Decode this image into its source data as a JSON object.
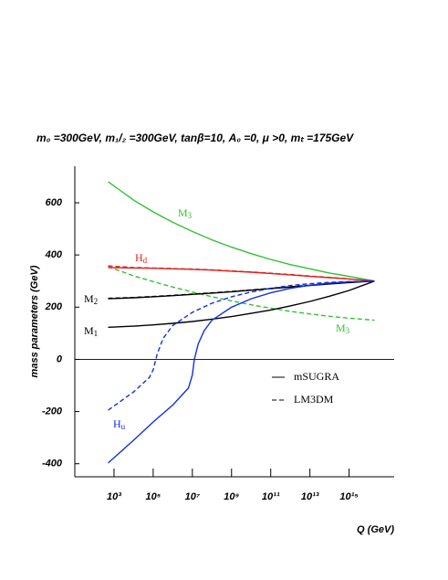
{
  "chart_data": {
    "type": "line",
    "title": "m₀ =300GeV, m₁/₂ =300GeV, tanβ=10, A₀ =0, μ >0, mₜ =175GeV",
    "x_label": "Q (GeV)",
    "y_label": "mass parameters (GeV)",
    "log_x": true,
    "xlim": [
      10,
      2e+17
    ],
    "ylim": [
      -450,
      740
    ],
    "xticks": [
      {
        "value": 1000,
        "label": "10³"
      },
      {
        "value": 100000,
        "label": "10⁵"
      },
      {
        "value": 10000000,
        "label": "10⁷"
      },
      {
        "value": 1000000000,
        "label": "10⁹"
      },
      {
        "value": 100000000000,
        "label": "10¹¹"
      },
      {
        "value": 10000000000000,
        "label": "10¹³"
      },
      {
        "value": 1000000000000000,
        "label": "10¹⁵"
      }
    ],
    "yticks": [
      -400,
      -200,
      0,
      200,
      400,
      600
    ],
    "zero_line": true,
    "legend": [
      {
        "label": "mSUGRA",
        "dash": "solid"
      },
      {
        "label": "LM3DM",
        "dash": "dashed"
      }
    ],
    "series": [
      {
        "label": "M",
        "label_sub": "3",
        "color": "#33c033",
        "dash": "solid",
        "x": [
          500,
          10000.0,
          100000.0,
          1000000.0,
          10000000.0,
          100000000.0,
          1000000000.0,
          10000000000.0,
          100000000000.0,
          1000000000000.0,
          10000000000000.0,
          100000000000000.0,
          1000000000000000.0,
          2e+16
        ],
        "values": [
          681,
          610,
          565,
          525,
          490,
          458,
          430,
          405,
          383,
          363,
          347,
          331,
          318,
          300
        ]
      },
      {
        "label": "M",
        "label_sub": "3",
        "color": "#33c033",
        "dash": "dashed",
        "x": [
          500,
          10000.0,
          100000.0,
          1000000.0,
          10000000.0,
          100000000.0,
          1000000000.0,
          10000000000.0,
          100000000000.0,
          1000000000000.0,
          10000000000000.0,
          100000000000000.0,
          1000000000000000.0,
          2e+16
        ],
        "values": [
          355,
          320,
          298,
          277,
          258,
          240,
          224,
          209,
          196,
          184,
          174,
          165,
          158,
          150
        ]
      },
      {
        "label": "H",
        "label_sub": "d",
        "color": "#e02020",
        "dash": "solid",
        "x": [
          500,
          10000.0,
          100000.0,
          1000000.0,
          10000000.0,
          100000000.0,
          1000000000.0,
          10000000000.0,
          100000000000.0,
          1000000000000.0,
          10000000000000.0,
          100000000000000.0,
          1000000000000000.0,
          2e+16
        ],
        "values": [
          352,
          350,
          349,
          347,
          345,
          342,
          338,
          334,
          329,
          324,
          318,
          313,
          308,
          300
        ]
      },
      {
        "color": "#e02020",
        "dash": "dashed",
        "x": [
          500,
          10000.0,
          100000.0,
          1000000.0,
          10000000.0,
          100000000.0,
          1000000000.0,
          10000000000.0,
          100000000000.0,
          1000000000000.0,
          10000000000000.0,
          100000000000000.0,
          1000000000000000.0,
          2e+16
        ],
        "values": [
          358,
          352,
          350,
          348,
          346,
          343,
          339,
          335,
          330,
          325,
          319,
          314,
          308,
          300
        ]
      },
      {
        "label": "M",
        "label_sub": "2",
        "color": "#000000",
        "dash": "solid",
        "x": [
          500,
          10000.0,
          100000.0,
          1000000.0,
          10000000.0,
          100000000.0,
          1000000000.0,
          10000000000.0,
          100000000000.0,
          1000000000000.0,
          10000000000000.0,
          100000000000000.0,
          1000000000000000.0,
          2e+16
        ],
        "values": [
          232,
          236,
          240,
          244,
          249,
          254,
          259,
          265,
          271,
          277,
          283,
          289,
          294,
          300
        ]
      },
      {
        "color": "#000000",
        "dash": "dashed",
        "x": [
          500,
          10000.0,
          100000.0,
          1000000.0,
          10000000.0,
          100000000.0,
          1000000000.0,
          10000000000.0,
          100000000000.0,
          1000000000000.0,
          10000000000000.0,
          100000000000000.0,
          1000000000000000.0,
          2e+16
        ],
        "values": [
          234,
          237,
          241,
          245,
          250,
          255,
          260,
          266,
          272,
          278,
          284,
          290,
          295,
          300
        ]
      },
      {
        "label": "M",
        "label_sub": "1",
        "color": "#000000",
        "dash": "solid",
        "x": [
          500,
          10000.0,
          100000.0,
          1000000.0,
          10000000.0,
          100000000.0,
          1000000000.0,
          10000000000.0,
          100000000000.0,
          1000000000000.0,
          10000000000000.0,
          100000000000000.0,
          1000000000000000.0,
          2e+16
        ],
        "values": [
          123,
          127,
          132,
          138,
          145,
          154,
          164,
          176,
          189,
          205,
          222,
          242,
          264,
          300
        ]
      },
      {
        "label": "H",
        "label_sub": "u",
        "color": "#1030e0",
        "dash": "solid",
        "x": [
          500,
          10000.0,
          100000.0,
          1000000.0,
          6300000.0,
          10000000.0,
          12600000.0,
          20000000.0,
          40000000.0,
          100000000.0,
          1000000000.0,
          10000000000.0,
          100000000000.0,
          1000000000000.0,
          10000000000000.0,
          100000000000000.0,
          1000000000000000.0,
          2e+16
        ],
        "values": [
          -397,
          -310,
          -240,
          -175,
          -110,
          -60,
          0,
          60,
          110,
          150,
          200,
          232,
          255,
          272,
          284,
          292,
          297,
          300
        ]
      },
      {
        "color": "#1030e0",
        "dash": "dashed",
        "x": [
          500,
          10000.0,
          63000.0,
          100000.0,
          160000.0,
          320000.0,
          1000000.0,
          10000000.0,
          100000000.0,
          1000000000.0,
          10000000000.0,
          100000000000.0,
          1000000000000.0,
          10000000000000.0,
          100000000000000.0,
          1000000000000000.0,
          2e+16
        ],
        "values": [
          -195,
          -125,
          -70,
          -40,
          20,
          80,
          130,
          180,
          215,
          240,
          258,
          272,
          283,
          290,
          295,
          298,
          300
        ]
      }
    ]
  }
}
